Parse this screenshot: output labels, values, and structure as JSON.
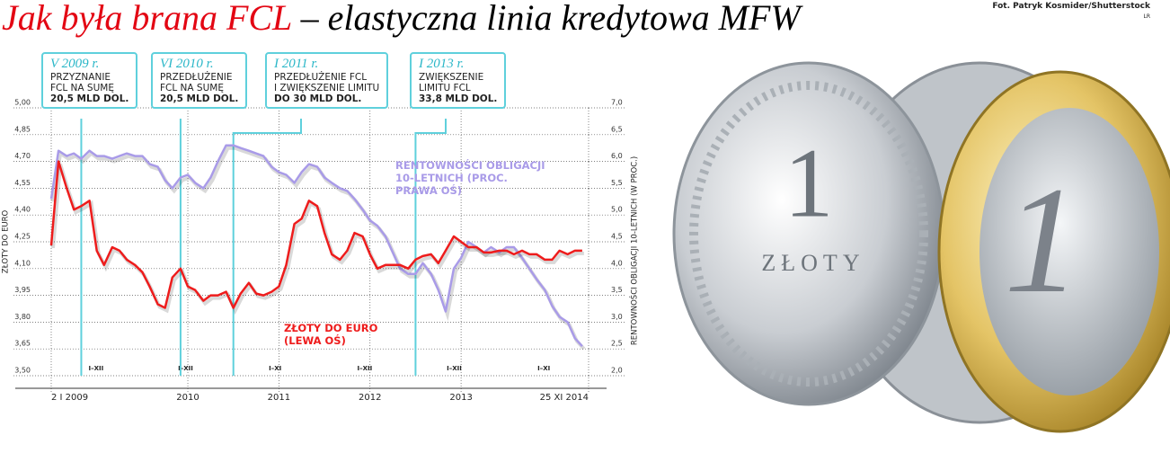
{
  "chart_data": {
    "type": "line",
    "title": "Jak była brana FCL",
    "subtitle": " – elastyczna linia kredytowa MFW",
    "credit": "Fot. Patryk Kosmider/Shutterstock",
    "initials": "LR",
    "ylabel": "ZŁOTY DO EURO",
    "y2label": "RENTOWNOŚCI OBLIGACJI 10-LETNICH (W PROC.)",
    "xlim": [
      2009.0,
      2014.9
    ],
    "xticks": [
      {
        "value": 2009.0,
        "label": "2 I 2009"
      },
      {
        "value": 2010.5,
        "label": "2010"
      },
      {
        "value": 2011.5,
        "label": "2011"
      },
      {
        "value": 2012.5,
        "label": "2012"
      },
      {
        "value": 2013.5,
        "label": "2013"
      },
      {
        "value": 2014.9,
        "label": "25 XI 2014"
      }
    ],
    "period_labels": [
      "I–XII",
      "I–XII",
      "I–XI",
      "I–XII",
      "I–XII",
      "I–XI"
    ],
    "ylim": [
      3.5,
      5.0
    ],
    "yticks": [
      {
        "value": 3.5,
        "label": "3,50"
      },
      {
        "value": 3.65,
        "label": "3,65"
      },
      {
        "value": 3.8,
        "label": "3,80"
      },
      {
        "value": 3.95,
        "label": "3,95"
      },
      {
        "value": 4.1,
        "label": "4,10"
      },
      {
        "value": 4.25,
        "label": "4,25"
      },
      {
        "value": 4.4,
        "label": "4,40"
      },
      {
        "value": 4.55,
        "label": "4,55"
      },
      {
        "value": 4.7,
        "label": "4,70"
      },
      {
        "value": 4.85,
        "label": "4,85"
      },
      {
        "value": 5.0,
        "label": "5,00"
      }
    ],
    "y2lim": [
      2.0,
      7.0
    ],
    "y2ticks": [
      {
        "value": 2.0,
        "label": "2,0"
      },
      {
        "value": 2.5,
        "label": "2,5"
      },
      {
        "value": 3.0,
        "label": "3,0"
      },
      {
        "value": 3.5,
        "label": "3,5"
      },
      {
        "value": 4.0,
        "label": "4,0"
      },
      {
        "value": 4.5,
        "label": "4,5"
      },
      {
        "value": 5.0,
        "label": "5,0"
      },
      {
        "value": 5.5,
        "label": "5,5"
      },
      {
        "value": 6.0,
        "label": "6,0"
      },
      {
        "value": 6.5,
        "label": "6,5"
      },
      {
        "value": 7.0,
        "label": "7,0"
      }
    ],
    "grid": true,
    "x": [
      2009,
      2009.08,
      2009.17,
      2009.25,
      2009.33,
      2009.42,
      2009.5,
      2009.58,
      2009.67,
      2009.75,
      2009.83,
      2009.92,
      2010,
      2010.08,
      2010.17,
      2010.25,
      2010.33,
      2010.42,
      2010.5,
      2010.58,
      2010.67,
      2010.75,
      2010.83,
      2010.92,
      2011,
      2011.08,
      2011.17,
      2011.25,
      2011.33,
      2011.42,
      2011.5,
      2011.58,
      2011.67,
      2011.75,
      2011.83,
      2011.92,
      2012,
      2012.08,
      2012.17,
      2012.25,
      2012.33,
      2012.42,
      2012.5,
      2012.58,
      2012.67,
      2012.75,
      2012.83,
      2012.92,
      2013,
      2013.08,
      2013.17,
      2013.25,
      2013.33,
      2013.42,
      2013.5,
      2013.58,
      2013.67,
      2013.75,
      2013.83,
      2013.92,
      2014,
      2014.08,
      2014.17,
      2014.25,
      2014.33,
      2014.42,
      2014.5,
      2014.58,
      2014.67,
      2014.75,
      2014.83
    ],
    "series": [
      {
        "name": "RENTOWNOŚCI OBLIGACJI 10-LETNICH (PROC. PRAWA OŚ)",
        "color": "#a99be8",
        "axis": "y2",
        "values": [
          5.3,
          6.2,
          6.1,
          6.15,
          6.05,
          6.2,
          6.1,
          6.1,
          6.05,
          6.1,
          6.15,
          6.1,
          6.1,
          5.95,
          5.9,
          5.65,
          5.5,
          5.7,
          5.75,
          5.6,
          5.5,
          5.7,
          6.0,
          6.3,
          6.3,
          6.25,
          6.2,
          6.15,
          6.1,
          5.9,
          5.8,
          5.75,
          5.6,
          5.8,
          5.95,
          5.9,
          5.7,
          5.6,
          5.5,
          5.45,
          5.3,
          5.1,
          4.9,
          4.8,
          4.6,
          4.3,
          4.0,
          3.9,
          3.9,
          4.1,
          3.9,
          3.6,
          3.2,
          4.0,
          4.2,
          4.5,
          4.4,
          4.3,
          4.4,
          4.3,
          4.4,
          4.4,
          4.2,
          4.0,
          3.8,
          3.6,
          3.3,
          3.1,
          3.0,
          2.7,
          2.55
        ]
      },
      {
        "name": "ZŁOTY DO EURO (LEWA OŚ)",
        "color": "#ee1c1c",
        "values": [
          4.23,
          4.7,
          4.55,
          4.43,
          4.45,
          4.48,
          4.2,
          4.12,
          4.22,
          4.2,
          4.15,
          4.12,
          4.08,
          4.0,
          3.9,
          3.88,
          4.05,
          4.1,
          4.0,
          3.98,
          3.92,
          3.95,
          3.95,
          3.97,
          3.88,
          3.96,
          4.02,
          3.96,
          3.95,
          3.97,
          4.0,
          4.12,
          4.35,
          4.38,
          4.48,
          4.45,
          4.3,
          4.18,
          4.15,
          4.2,
          4.3,
          4.28,
          4.18,
          4.1,
          4.12,
          4.12,
          4.12,
          4.1,
          4.15,
          4.17,
          4.18,
          4.13,
          4.2,
          4.28,
          4.25,
          4.22,
          4.22,
          4.19,
          4.19,
          4.2,
          4.2,
          4.18,
          4.2,
          4.18,
          4.18,
          4.15,
          4.15,
          4.2,
          4.18,
          4.2,
          4.2
        ]
      }
    ],
    "annotations": [
      {
        "x": 2009.33,
        "date": "V 2009 r.",
        "text": [
          "PRZYZNANIE",
          "FCL NA SUMĘ"
        ],
        "amount": "20,5 MLD DOL."
      },
      {
        "x": 2010.42,
        "date": "VI 2010 r.",
        "text": [
          "PRZEDŁUŻENIE",
          "FCL NA SUMĘ"
        ],
        "amount": "20,5 MLD DOL."
      },
      {
        "x": 2011.0,
        "date": "I 2011 r.",
        "text": [
          "PRZEDŁUŻENIE  FCL",
          "I ZWIĘKSZENIE LIMITU"
        ],
        "amount": "DO 30 MLD DOL."
      },
      {
        "x": 2013.0,
        "date": "I 2013 r.",
        "text": [
          "ZWIĘKSZENIE",
          "LIMITU FCL"
        ],
        "amount": "33,8 MLD DOL."
      }
    ],
    "annotation_color": "#5fd0dc",
    "coin_text": {
      "zloty": [
        "1",
        "ZŁOTY"
      ],
      "euro": "1"
    }
  }
}
